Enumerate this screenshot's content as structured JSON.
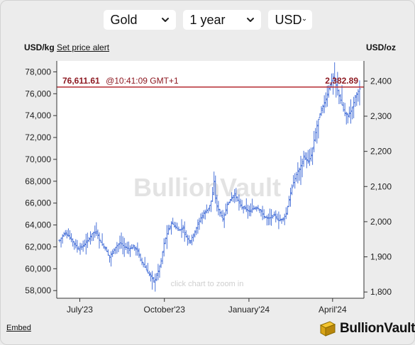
{
  "selectors": {
    "metal": "Gold",
    "period": "1 year",
    "currency": "USD"
  },
  "header": {
    "left_unit": "USD/kg",
    "alert_link": "Set price alert",
    "right_unit": "USD/oz"
  },
  "watermark": "BullionVault",
  "zoom_hint": "click chart to zoom in",
  "footer": {
    "embed_link": "Embed",
    "brand": "BullionVault"
  },
  "colors": {
    "series": "#4a73d9",
    "current_line": "#b52a30",
    "current_text": "#8e1a22",
    "axis": "#333333"
  },
  "chart_data": {
    "type": "ohlc",
    "x_ticks": [
      "July'23",
      "October'23",
      "January'24",
      "April'24"
    ],
    "x_tick_days": [
      22,
      114,
      206,
      297
    ],
    "y_left": {
      "label": "USD/kg",
      "ticks": [
        "58,000",
        "60,000",
        "62,000",
        "64,000",
        "66,000",
        "68,000",
        "70,000",
        "72,000",
        "74,000",
        "76,000",
        "78,000"
      ],
      "values": [
        58000,
        60000,
        62000,
        64000,
        66000,
        68000,
        70000,
        72000,
        74000,
        76000,
        78000
      ],
      "range": [
        57300,
        79000
      ]
    },
    "y_right": {
      "label": "USD/oz",
      "ticks": [
        "1,800",
        "1,900",
        "2,000",
        "2,100",
        "2,200",
        "2,300",
        "2,400"
      ],
      "values": [
        1800,
        1900,
        2000,
        2100,
        2200,
        2300,
        2400
      ]
    },
    "current": {
      "left_value": "76,611.61",
      "time": "@10:41:09 GMT+1",
      "right_value": "2,382.89",
      "usd_kg": 76611.61
    },
    "grid": false,
    "anchors": [
      [
        0,
        62600
      ],
      [
        6,
        63300
      ],
      [
        10,
        63000
      ],
      [
        16,
        62300
      ],
      [
        20,
        61800
      ],
      [
        24,
        62000
      ],
      [
        30,
        62500
      ],
      [
        36,
        63300
      ],
      [
        40,
        63400
      ],
      [
        44,
        62500
      ],
      [
        50,
        61800
      ],
      [
        54,
        61000
      ],
      [
        60,
        61900
      ],
      [
        66,
        62400
      ],
      [
        70,
        62000
      ],
      [
        76,
        61800
      ],
      [
        80,
        62000
      ],
      [
        84,
        61800
      ],
      [
        88,
        60800
      ],
      [
        92,
        60300
      ],
      [
        96,
        59600
      ],
      [
        100,
        59200
      ],
      [
        103,
        58800
      ],
      [
        106,
        59500
      ],
      [
        110,
        60500
      ],
      [
        114,
        62500
      ],
      [
        118,
        63500
      ],
      [
        122,
        64200
      ],
      [
        126,
        63800
      ],
      [
        130,
        63500
      ],
      [
        134,
        63800
      ],
      [
        138,
        62800
      ],
      [
        142,
        62500
      ],
      [
        146,
        63200
      ],
      [
        150,
        64000
      ],
      [
        154,
        64700
      ],
      [
        158,
        65200
      ],
      [
        162,
        65500
      ],
      [
        166,
        66500
      ],
      [
        168,
        68000
      ],
      [
        170,
        66000
      ],
      [
        174,
        65200
      ],
      [
        178,
        64500
      ],
      [
        182,
        65800
      ],
      [
        186,
        66400
      ],
      [
        190,
        66800
      ],
      [
        194,
        66200
      ],
      [
        198,
        65600
      ],
      [
        202,
        65500
      ],
      [
        206,
        65200
      ],
      [
        210,
        65500
      ],
      [
        214,
        65600
      ],
      [
        218,
        65400
      ],
      [
        222,
        64800
      ],
      [
        226,
        64600
      ],
      [
        230,
        64700
      ],
      [
        234,
        64900
      ],
      [
        238,
        64400
      ],
      [
        242,
        64500
      ],
      [
        246,
        64900
      ],
      [
        250,
        66500
      ],
      [
        254,
        67800
      ],
      [
        258,
        68700
      ],
      [
        262,
        69300
      ],
      [
        266,
        70300
      ],
      [
        270,
        69700
      ],
      [
        274,
        70400
      ],
      [
        278,
        72300
      ],
      [
        282,
        73800
      ],
      [
        286,
        74800
      ],
      [
        290,
        75600
      ],
      [
        294,
        76800
      ],
      [
        298,
        77600
      ],
      [
        302,
        76400
      ],
      [
        306,
        75300
      ],
      [
        310,
        74200
      ],
      [
        314,
        74000
      ],
      [
        318,
        74600
      ],
      [
        322,
        75800
      ],
      [
        326,
        76400
      ],
      [
        328,
        76612
      ]
    ]
  }
}
